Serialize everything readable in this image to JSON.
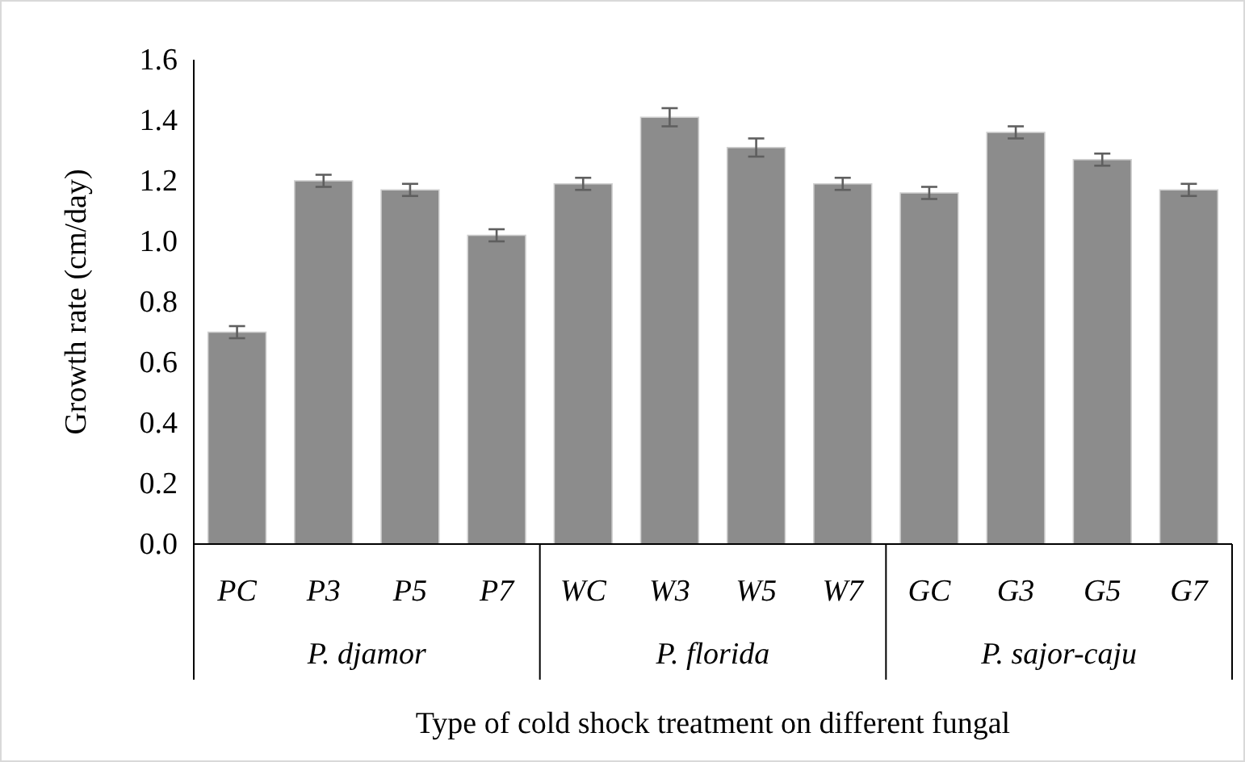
{
  "chart_data": {
    "type": "bar",
    "xlabel": "Type of cold shock treatment on different fungal",
    "ylabel": "Growth rate (cm/day)",
    "categories": [
      "PC",
      "P3",
      "P5",
      "P7",
      "WC",
      "W3",
      "W5",
      "W7",
      "GC",
      "G3",
      "G5",
      "G7"
    ],
    "values": [
      0.7,
      1.2,
      1.17,
      1.02,
      1.19,
      1.41,
      1.31,
      1.19,
      1.16,
      1.36,
      1.27,
      1.17
    ],
    "errors": [
      0.02,
      0.02,
      0.02,
      0.02,
      0.02,
      0.03,
      0.03,
      0.02,
      0.02,
      0.02,
      0.02,
      0.02
    ],
    "color": "#8c8c8c",
    "ylim": [
      0,
      1.6
    ],
    "yticks": [
      {
        "value": 0,
        "label": "0.0"
      },
      {
        "value": 0.2,
        "label": "0.2"
      },
      {
        "value": 0.4,
        "label": "0.4"
      },
      {
        "value": 0.6,
        "label": "0.6"
      },
      {
        "value": 0.8,
        "label": "0.8"
      },
      {
        "value": 1.0,
        "label": "1.0"
      },
      {
        "value": 1.2,
        "label": "1.2"
      },
      {
        "value": 1.4,
        "label": "1.4"
      },
      {
        "value": 1.6,
        "label": "1.6"
      }
    ],
    "annotations": [
      "P. djamor",
      "P. florida",
      "P. sajor-caju"
    ],
    "grid": false
  }
}
